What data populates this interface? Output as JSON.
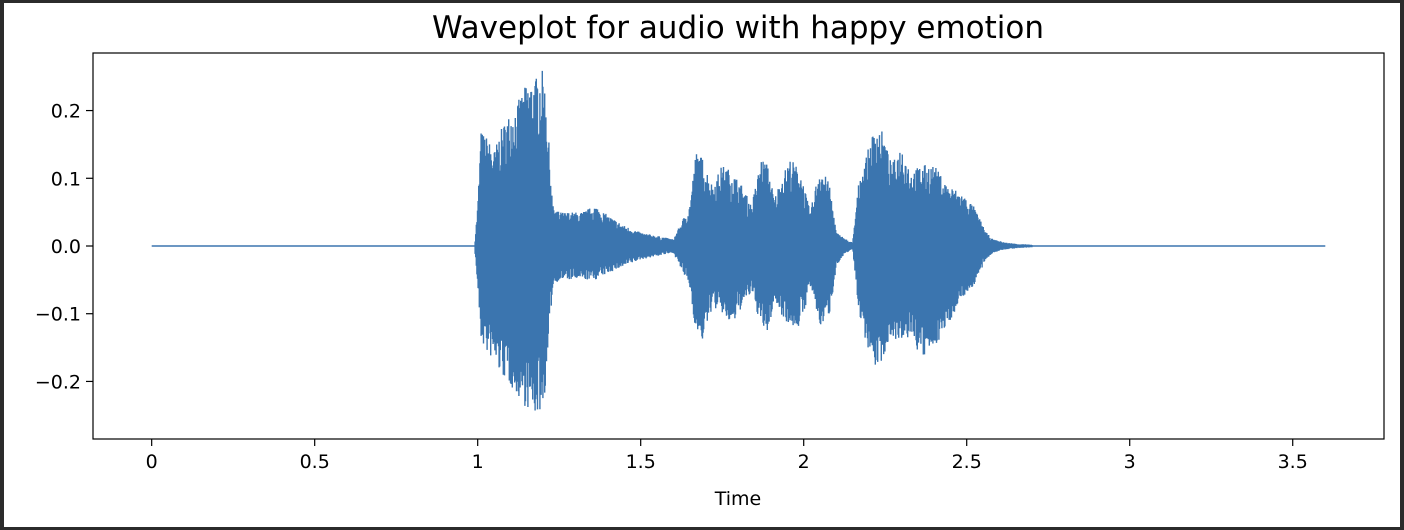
{
  "chart_data": {
    "type": "area",
    "title": "Waveplot for audio with happy emotion",
    "xlabel": "Time",
    "ylabel": "",
    "xlim": [
      -0.18,
      3.78
    ],
    "ylim": [
      -0.285,
      0.285
    ],
    "grid": false,
    "legend": "none",
    "color": "#3b75af",
    "x_ticks": [
      0,
      0.5,
      1,
      1.5,
      2,
      2.5,
      3,
      3.5
    ],
    "x_tick_labels": [
      "0",
      "0.5",
      "1",
      "1.5",
      "2",
      "2.5",
      "3",
      "3.5"
    ],
    "y_ticks": [
      0.2,
      0.1,
      0.0,
      -0.1,
      -0.2
    ],
    "y_tick_labels": [
      "0.2",
      "0.1",
      "0.0",
      "−0.1",
      "−0.2"
    ],
    "duration": 3.6,
    "envelope": {
      "t": [
        0,
        0.99,
        1.0,
        1.01,
        1.03,
        1.05,
        1.07,
        1.09,
        1.12,
        1.15,
        1.18,
        1.2,
        1.21,
        1.22,
        1.23,
        1.25,
        1.28,
        1.32,
        1.36,
        1.4,
        1.45,
        1.5,
        1.55,
        1.6,
        1.63,
        1.65,
        1.67,
        1.69,
        1.72,
        1.75,
        1.78,
        1.81,
        1.84,
        1.87,
        1.89,
        1.91,
        1.93,
        1.96,
        1.99,
        2.02,
        2.05,
        2.08,
        2.1,
        2.13,
        2.15,
        2.17,
        2.19,
        2.22,
        2.24,
        2.27,
        2.3,
        2.33,
        2.36,
        2.4,
        2.44,
        2.48,
        2.52,
        2.54,
        2.56,
        2.58,
        2.62,
        2.66,
        2.7,
        2.8,
        3.0,
        3.3,
        3.6
      ],
      "upper": [
        0,
        0,
        0.06,
        0.17,
        0.16,
        0.14,
        0.17,
        0.19,
        0.21,
        0.24,
        0.25,
        0.26,
        0.22,
        0.14,
        0.06,
        0.05,
        0.05,
        0.05,
        0.06,
        0.045,
        0.03,
        0.02,
        0.015,
        0.01,
        0.04,
        0.06,
        0.14,
        0.13,
        0.09,
        0.12,
        0.11,
        0.09,
        0.06,
        0.13,
        0.12,
        0.07,
        0.1,
        0.13,
        0.11,
        0.05,
        0.12,
        0.09,
        0.02,
        0.01,
        0.005,
        0.1,
        0.13,
        0.18,
        0.17,
        0.12,
        0.15,
        0.11,
        0.12,
        0.12,
        0.09,
        0.08,
        0.06,
        0.04,
        0.02,
        0.01,
        0.005,
        0.003,
        0.002,
        0.001,
        0.001,
        0.001,
        0
      ],
      "lower": [
        0,
        0,
        -0.06,
        -0.14,
        -0.16,
        -0.17,
        -0.19,
        -0.2,
        -0.22,
        -0.24,
        -0.25,
        -0.24,
        -0.2,
        -0.13,
        -0.06,
        -0.05,
        -0.05,
        -0.05,
        -0.05,
        -0.04,
        -0.03,
        -0.02,
        -0.015,
        -0.01,
        -0.04,
        -0.06,
        -0.13,
        -0.14,
        -0.09,
        -0.1,
        -0.12,
        -0.09,
        -0.07,
        -0.12,
        -0.13,
        -0.08,
        -0.1,
        -0.12,
        -0.12,
        -0.06,
        -0.12,
        -0.1,
        -0.03,
        -0.01,
        -0.005,
        -0.1,
        -0.14,
        -0.18,
        -0.17,
        -0.13,
        -0.15,
        -0.13,
        -0.17,
        -0.15,
        -0.12,
        -0.08,
        -0.06,
        -0.04,
        -0.02,
        -0.01,
        -0.005,
        -0.003,
        -0.002,
        -0.001,
        -0.001,
        -0.001,
        0
      ]
    }
  }
}
